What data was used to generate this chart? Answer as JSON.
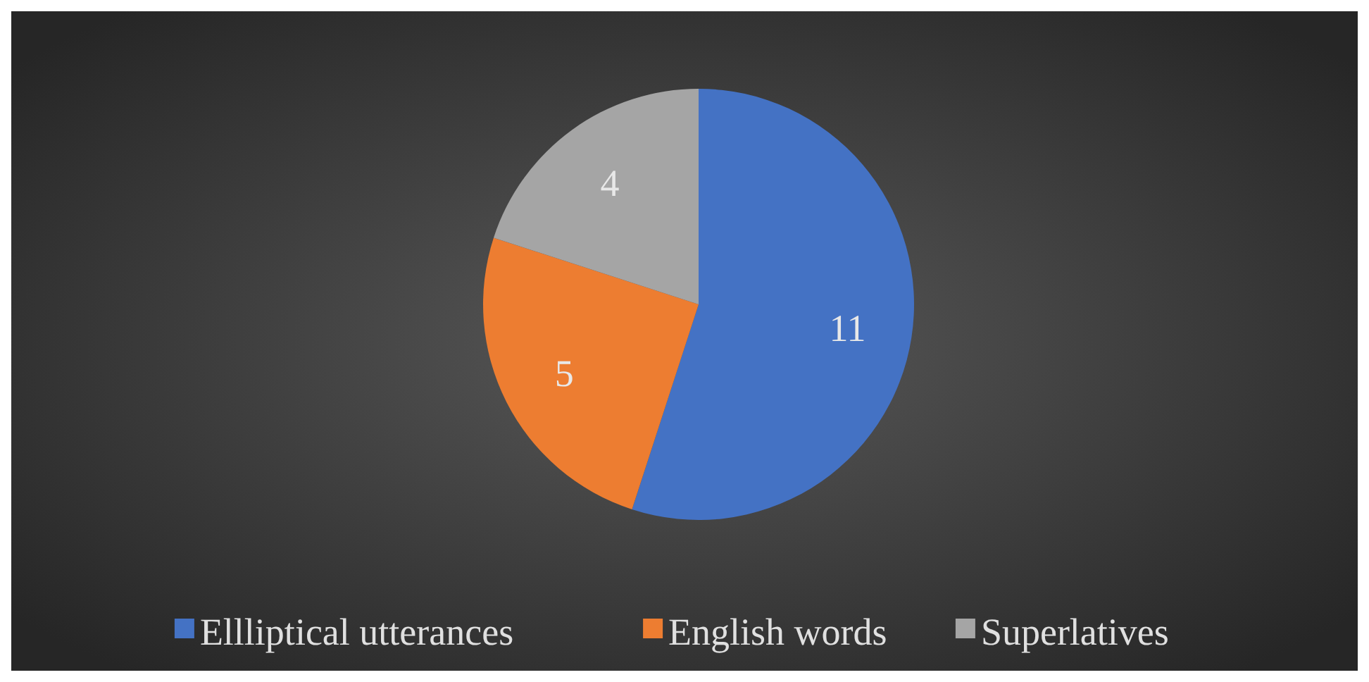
{
  "chart_data": {
    "type": "pie",
    "categories": [
      "Ellliptical utterances",
      "English words",
      "Superlatives"
    ],
    "values": [
      11,
      5,
      4
    ],
    "colors": [
      "#4472c4",
      "#ed7d31",
      "#a5a5a5"
    ],
    "data_labels": true,
    "legend": "bottom"
  }
}
